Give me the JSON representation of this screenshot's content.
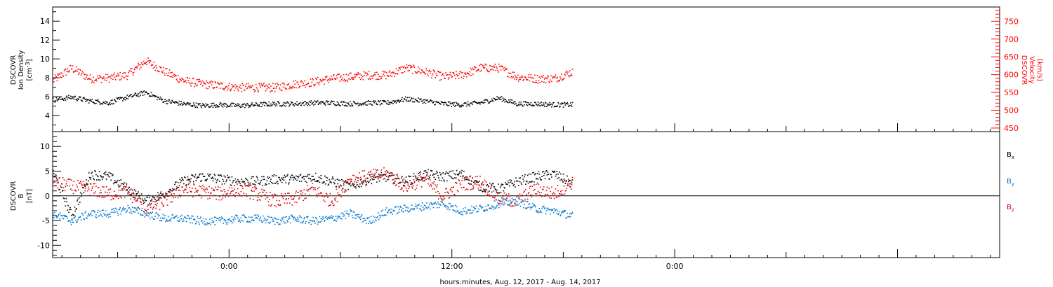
{
  "chart_data": [
    {
      "type": "scatter",
      "panel": "top",
      "ylabel_left": [
        "DSCOVR",
        "Ion Density",
        "[cm",
        "-3",
        "]"
      ],
      "ylabel_right": [
        "DSCOVR",
        "Velocity",
        "[km/s]"
      ],
      "xlim_hours": [
        -9.5,
        41.5
      ],
      "ylim_left": [
        2.3,
        15.5
      ],
      "ylim_right": [
        440,
        790
      ],
      "y_ticks_left": [
        "4",
        "6",
        "8",
        "10",
        "12",
        "14"
      ],
      "y_ticks_right": [
        "450",
        "500",
        "550",
        "600",
        "650",
        "700",
        "750"
      ],
      "grid": false,
      "series": [
        {
          "name": "Ion Density",
          "axis": "left",
          "color": "#000000",
          "x": [
            -9.5,
            -8.5,
            -7.5,
            -6.5,
            -5.5,
            -4.5,
            -3.5,
            -2.5,
            -1.5,
            -0.5,
            0.5,
            1.5,
            2.5,
            3.5,
            4.5,
            5.5,
            6.5,
            7.5,
            8.5,
            9.5,
            10.5,
            11.5,
            12.5,
            13.5,
            14.5,
            15.5,
            16.5,
            17.5,
            18.5
          ],
          "y": [
            5.7,
            6.0,
            5.6,
            5.4,
            6.0,
            6.5,
            5.6,
            5.3,
            5.1,
            5.2,
            5.1,
            5.2,
            5.3,
            5.3,
            5.4,
            5.4,
            5.3,
            5.4,
            5.4,
            5.8,
            5.6,
            5.3,
            5.2,
            5.4,
            5.9,
            5.3,
            5.3,
            5.2,
            5.2
          ]
        },
        {
          "name": "Velocity",
          "axis": "right",
          "color": "#ff0000",
          "x": [
            -9.5,
            -8.5,
            -7.5,
            -6.5,
            -5.5,
            -4.5,
            -3.5,
            -2.5,
            -1.5,
            -0.5,
            0.5,
            1.5,
            2.5,
            3.5,
            4.5,
            5.5,
            6.5,
            7.5,
            8.5,
            9.5,
            10.5,
            11.5,
            12.5,
            13.5,
            14.5,
            15.5,
            16.5,
            17.5,
            18.5
          ],
          "y": [
            585,
            620,
            590,
            592,
            600,
            640,
            610,
            585,
            575,
            570,
            565,
            565,
            565,
            575,
            580,
            590,
            595,
            600,
            600,
            620,
            610,
            595,
            600,
            620,
            620,
            595,
            590,
            590,
            610
          ]
        }
      ]
    },
    {
      "type": "scatter",
      "panel": "bottom",
      "ylabel_left": [
        "DSCOVR",
        "B",
        "[nT]"
      ],
      "xlabel": "hours:minutes, Aug. 12, 2017 - Aug. 14, 2017",
      "x_tick_labels": [
        {
          "hour": 0,
          "label": "0:00"
        },
        {
          "hour": 12,
          "label": "12:00"
        },
        {
          "hour": 24,
          "label": "0:00"
        }
      ],
      "xlim_hours": [
        -9.5,
        41.5
      ],
      "ylim": [
        -12.5,
        13
      ],
      "y_ticks": [
        "-10",
        "-5",
        "0",
        "5",
        "10"
      ],
      "zero_line": true,
      "grid": false,
      "legend_placement": "right",
      "series": [
        {
          "name": "B",
          "sub": "x",
          "color": "#000000",
          "x": [
            -9.5,
            -8.5,
            -7.5,
            -6.5,
            -5.5,
            -4.5,
            -3.5,
            -2.5,
            -1.5,
            -0.5,
            0.5,
            1.5,
            2.5,
            3.5,
            4.5,
            5.5,
            6.5,
            7.5,
            8.5,
            9.5,
            10.5,
            11.5,
            12.5,
            13.5,
            14.5,
            15.5,
            16.5,
            17.5,
            18.5
          ],
          "y": [
            5.0,
            -4.0,
            4.5,
            4.0,
            1.5,
            -1.0,
            0.5,
            3.0,
            4.0,
            3.5,
            3.0,
            3.0,
            3.5,
            3.5,
            4.0,
            3.0,
            2.0,
            3.5,
            4.0,
            3.0,
            4.5,
            4.0,
            4.5,
            2.0,
            1.5,
            3.0,
            4.0,
            4.5,
            2.5
          ]
        },
        {
          "name": "B",
          "sub": "y",
          "color": "#0077cc",
          "x": [
            -9.5,
            -8.5,
            -7.5,
            -6.5,
            -5.5,
            -4.5,
            -3.5,
            -2.5,
            -1.5,
            -0.5,
            0.5,
            1.5,
            2.5,
            3.5,
            4.5,
            5.5,
            6.5,
            7.5,
            8.5,
            9.5,
            10.5,
            11.5,
            12.5,
            13.5,
            14.5,
            15.5,
            16.5,
            17.5,
            18.5
          ],
          "y": [
            -3.5,
            -5.0,
            -3.5,
            -3.5,
            -2.5,
            -3.5,
            -4.5,
            -4.5,
            -5.0,
            -5.0,
            -4.5,
            -4.5,
            -5.0,
            -4.5,
            -5.0,
            -4.5,
            -3.5,
            -5.0,
            -3.0,
            -2.5,
            -2.0,
            -1.5,
            -3.0,
            -2.5,
            -1.5,
            -1.0,
            -2.5,
            -3.0,
            -4.0
          ]
        },
        {
          "name": "B",
          "sub": "z",
          "color": "#dd0000",
          "x": [
            -9.5,
            -8.5,
            -7.5,
            -6.5,
            -5.5,
            -4.5,
            -3.5,
            -2.5,
            -1.5,
            -0.5,
            0.5,
            1.5,
            2.5,
            3.5,
            4.5,
            5.5,
            6.5,
            7.5,
            8.5,
            9.5,
            10.5,
            11.5,
            12.5,
            13.5,
            14.5,
            15.5,
            16.5,
            17.5,
            18.5
          ],
          "y": [
            3.0,
            2.0,
            1.5,
            0.5,
            1.0,
            -2.5,
            -1.0,
            1.5,
            1.0,
            0.5,
            1.5,
            0.5,
            -1.0,
            -0.5,
            1.5,
            -1.0,
            3.5,
            4.0,
            4.5,
            2.0,
            3.5,
            0.0,
            2.5,
            3.0,
            -0.5,
            -1.0,
            1.5,
            0.5,
            3.0
          ]
        }
      ]
    }
  ]
}
